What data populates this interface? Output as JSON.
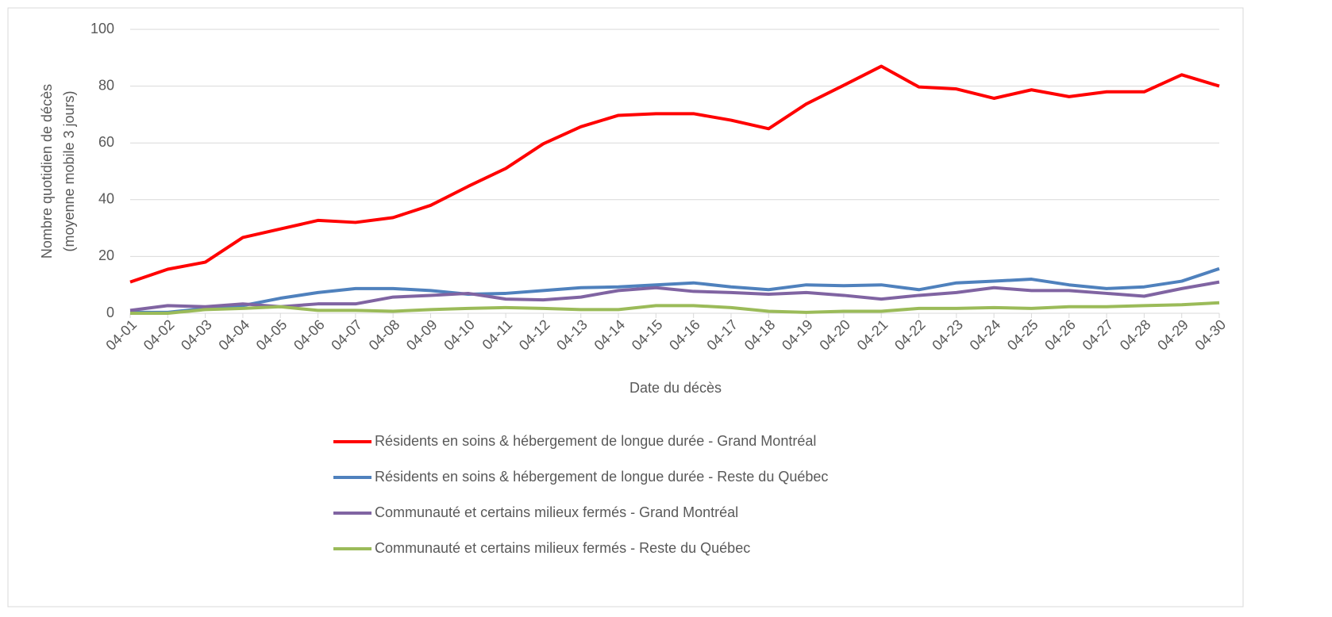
{
  "chart_data": {
    "type": "line",
    "xlabel": "Date du décès",
    "ylabel": [
      "Nombre quotidien de décès",
      "(moyenne mobile 3 jours)"
    ],
    "categories": [
      "04-01",
      "04-02",
      "04-03",
      "04-04",
      "04-05",
      "04-06",
      "04-07",
      "04-08",
      "04-09",
      "04-10",
      "04-11",
      "04-12",
      "04-13",
      "04-14",
      "04-15",
      "04-16",
      "04-17",
      "04-18",
      "04-19",
      "04-20",
      "04-21",
      "04-22",
      "04-23",
      "04-24",
      "04-25",
      "04-26",
      "04-27",
      "04-28",
      "04-29",
      "04-30"
    ],
    "series": [
      {
        "name": "Résidents en soins & hébergement de longue durée - Grand Montréal",
        "color": "#ff0000",
        "values": [
          11,
          15.5,
          18,
          26.7,
          29.7,
          32.7,
          32,
          33.7,
          38,
          44.7,
          51,
          59.7,
          65.7,
          69.7,
          70.3,
          70.3,
          68,
          65,
          73.7,
          80.3,
          87,
          79.7,
          79,
          75.7,
          78.7,
          76.3,
          78,
          78,
          84,
          80
        ]
      },
      {
        "name": "Résidents en soins & hébergement de longue durée - Reste du Québec",
        "color": "#4f81bd",
        "values": [
          0.3,
          0.3,
          1.7,
          2.7,
          5.3,
          7.3,
          8.7,
          8.7,
          8,
          6.7,
          7,
          8,
          9,
          9.3,
          10,
          10.7,
          9.3,
          8.3,
          10,
          9.7,
          10,
          8.3,
          10.7,
          11.3,
          12,
          10,
          8.7,
          9.3,
          11.3,
          15.7
        ]
      },
      {
        "name": "Communauté et certains milieux fermés - Grand Montréal",
        "color": "#8064a2",
        "values": [
          1,
          2.7,
          2.3,
          3.3,
          2.3,
          3.3,
          3.3,
          5.7,
          6.3,
          7,
          5,
          4.7,
          5.7,
          8,
          9,
          7.7,
          7.3,
          6.7,
          7.3,
          6.3,
          5,
          6.3,
          7.3,
          9,
          8,
          8,
          7,
          6,
          8.7,
          11
        ]
      },
      {
        "name": "Communauté et certains milieux fermés - Reste du Québec",
        "color": "#9bbb59",
        "values": [
          0,
          0,
          1.3,
          1.7,
          2.3,
          1,
          1,
          0.7,
          1.3,
          1.7,
          2,
          1.7,
          1.3,
          1.3,
          2.7,
          2.7,
          2,
          0.7,
          0.3,
          0.7,
          0.7,
          1.7,
          1.7,
          2,
          1.7,
          2.3,
          2.3,
          2.7,
          3,
          3.7
        ]
      }
    ],
    "ylim": [
      0,
      100
    ],
    "yticks": [
      0,
      20,
      40,
      60,
      80,
      100
    ],
    "grid": true,
    "legend": "bottom"
  }
}
